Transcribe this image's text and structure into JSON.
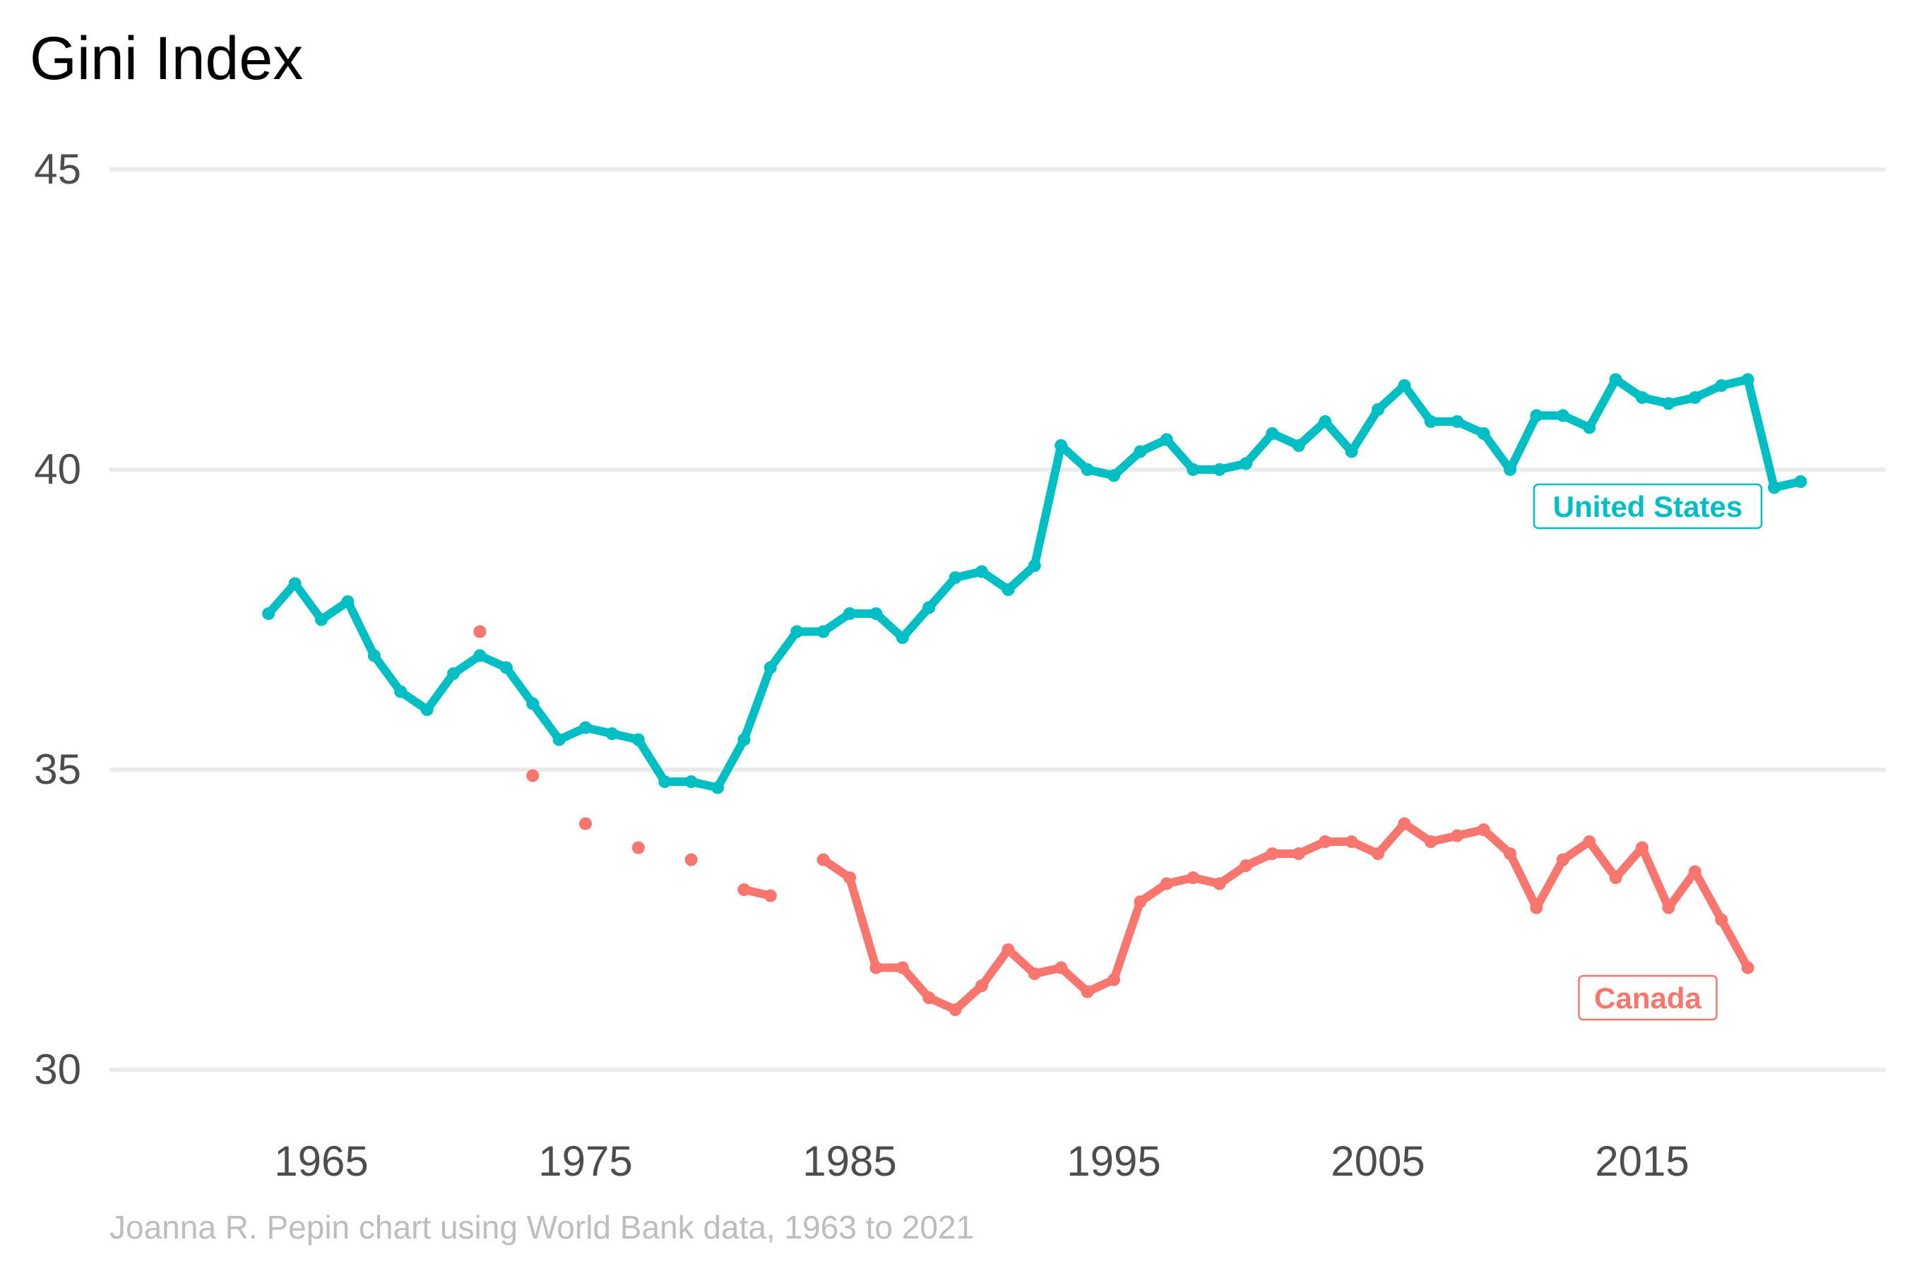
{
  "chart_data": {
    "type": "line",
    "title": "Gini Index",
    "caption": "Joanna R. Pepin chart using World Bank data, 1963 to 2021",
    "xlabel": "",
    "ylabel": "",
    "xlim": [
      1963,
      2021
    ],
    "ylim": [
      30,
      45
    ],
    "x_ticks": [
      1965,
      1975,
      1985,
      1995,
      2005,
      2015
    ],
    "y_ticks": [
      30,
      35,
      40,
      45
    ],
    "grid": true,
    "legend": "direct labels on series",
    "series": [
      {
        "name": "United States",
        "color": "#00BFC4",
        "x": [
          1963,
          1964,
          1965,
          1966,
          1967,
          1968,
          1969,
          1970,
          1971,
          1972,
          1973,
          1974,
          1975,
          1976,
          1977,
          1978,
          1979,
          1980,
          1981,
          1982,
          1983,
          1984,
          1985,
          1986,
          1987,
          1988,
          1989,
          1990,
          1991,
          1992,
          1993,
          1994,
          1995,
          1996,
          1997,
          1998,
          1999,
          2000,
          2001,
          2002,
          2003,
          2004,
          2005,
          2006,
          2007,
          2008,
          2009,
          2010,
          2011,
          2012,
          2013,
          2014,
          2015,
          2016,
          2017,
          2018,
          2019,
          2020,
          2021
        ],
        "y": [
          37.6,
          38.1,
          37.5,
          37.8,
          36.9,
          36.3,
          36.0,
          36.6,
          36.9,
          36.7,
          36.1,
          35.5,
          35.7,
          35.6,
          35.5,
          34.8,
          34.8,
          34.7,
          35.5,
          36.7,
          37.3,
          37.3,
          37.6,
          37.6,
          37.2,
          37.7,
          38.2,
          38.3,
          38.0,
          38.4,
          40.4,
          40.0,
          39.9,
          40.3,
          40.5,
          40.0,
          40.0,
          40.1,
          40.6,
          40.4,
          40.8,
          40.3,
          41.0,
          41.4,
          40.8,
          40.8,
          40.6,
          40.0,
          40.9,
          40.9,
          40.7,
          41.5,
          41.2,
          41.1,
          41.2,
          41.4,
          41.5,
          39.7,
          39.8
        ]
      },
      {
        "name": "Canada",
        "color": "#F8766D",
        "x": [
          1971,
          1973,
          1975,
          1977,
          1979,
          1981,
          1982,
          1984,
          1985,
          1986,
          1987,
          1988,
          1989,
          1990,
          1991,
          1992,
          1993,
          1994,
          1995,
          1996,
          1997,
          1998,
          1999,
          2000,
          2001,
          2002,
          2003,
          2004,
          2005,
          2006,
          2007,
          2008,
          2009,
          2010,
          2011,
          2012,
          2013,
          2014,
          2015,
          2016,
          2017,
          2018,
          2019
        ],
        "y": [
          37.3,
          34.9,
          34.1,
          33.7,
          33.5,
          33.0,
          32.9,
          33.5,
          33.2,
          31.7,
          31.7,
          31.2,
          31.0,
          31.4,
          32.0,
          31.6,
          31.7,
          31.3,
          31.5,
          32.8,
          33.1,
          33.2,
          33.1,
          33.4,
          33.6,
          33.6,
          33.8,
          33.8,
          33.6,
          34.1,
          33.8,
          33.9,
          34.0,
          33.6,
          32.7,
          33.5,
          33.8,
          33.2,
          33.7,
          32.7,
          33.3,
          32.5,
          31.7
        ]
      }
    ]
  }
}
